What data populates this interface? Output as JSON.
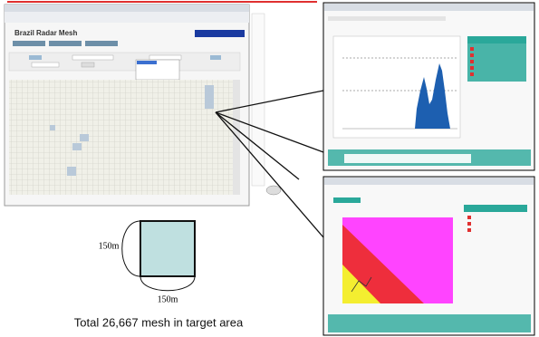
{
  "app": {
    "title": "Brazil Radar Mesh"
  },
  "diagram": {
    "side_label": "150m",
    "bottom_label": "150m"
  },
  "caption": "Total 26,667 mesh in target area"
}
